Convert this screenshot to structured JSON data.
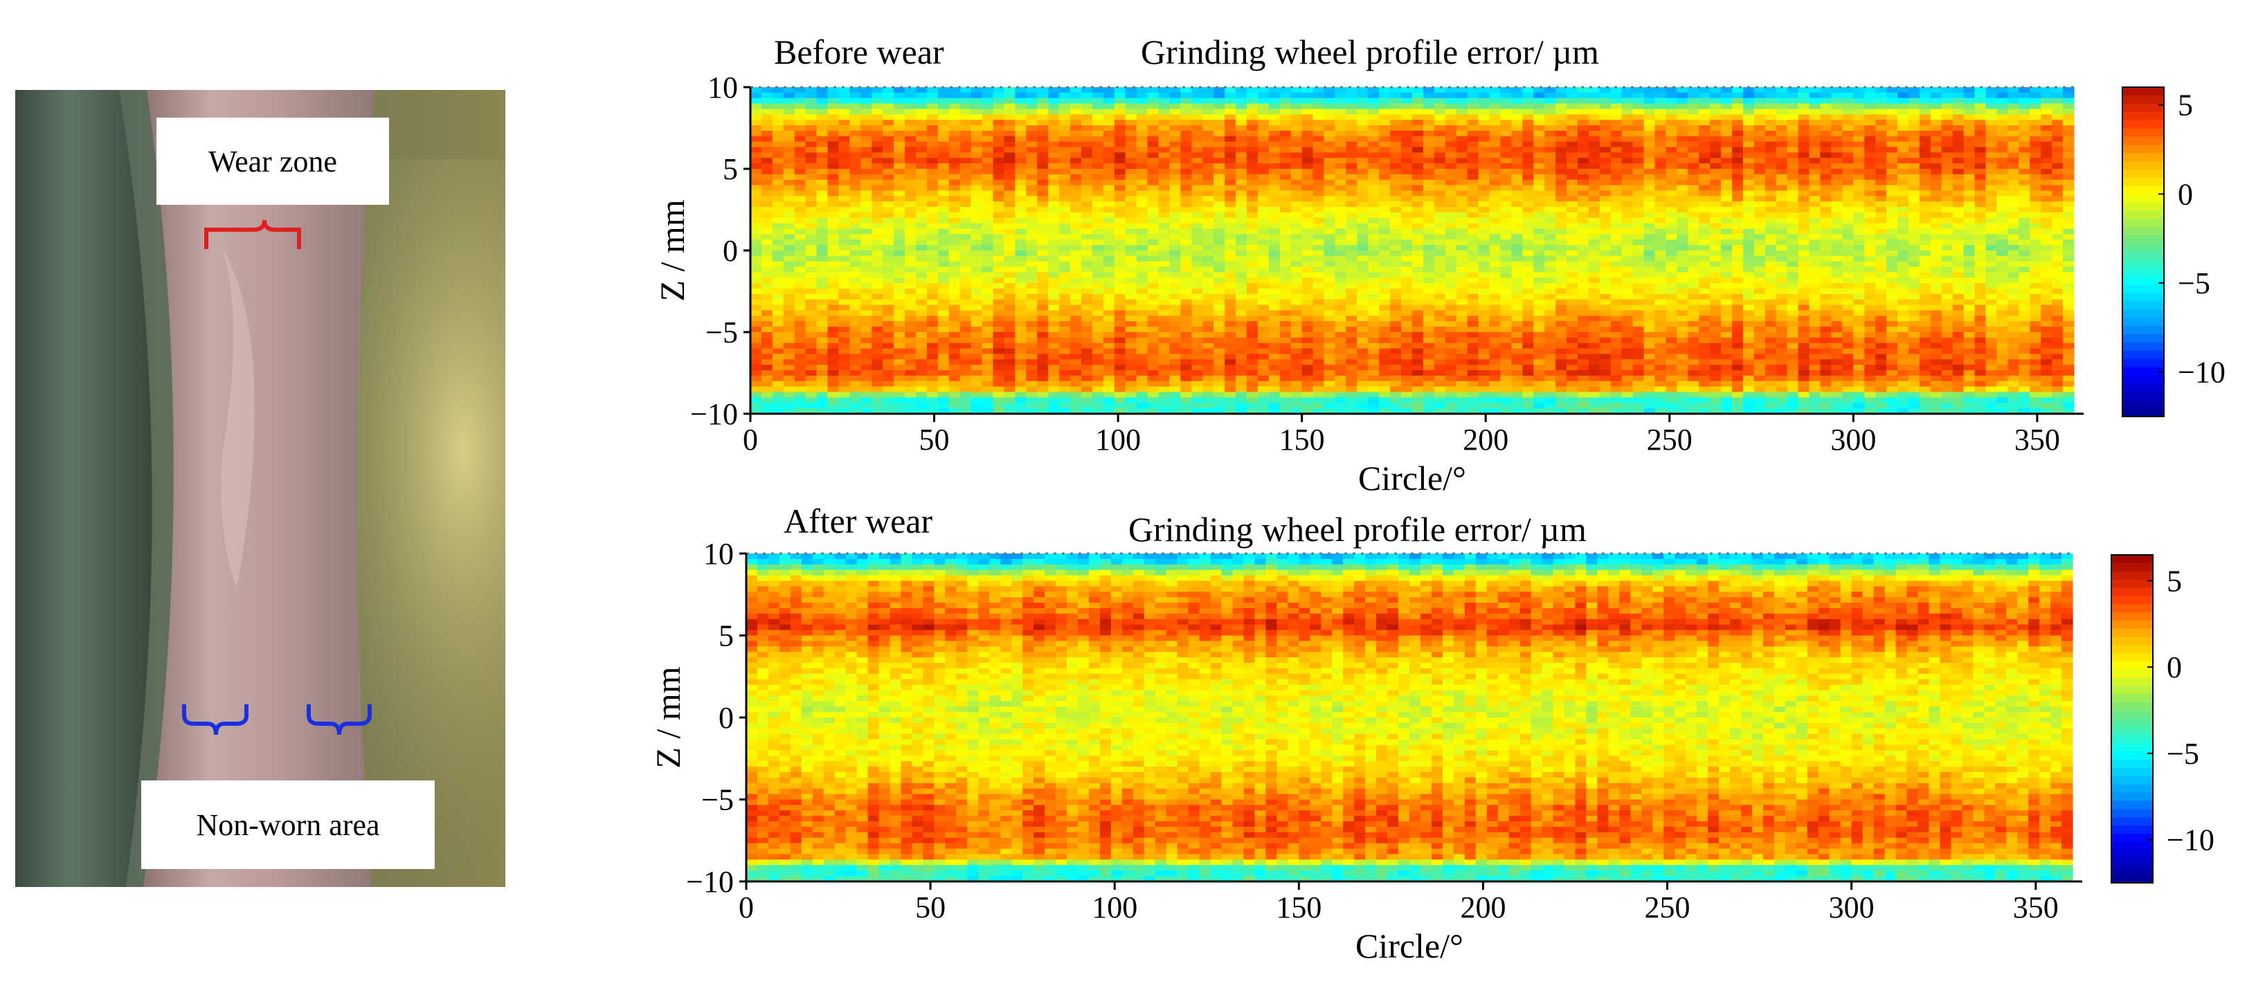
{
  "photo": {
    "wear_zone_label": "Wear zone",
    "non_worn_label": "Non-worn area"
  },
  "chart_data": [
    {
      "type": "heatmap",
      "panel_label": "Before wear",
      "title": "Grinding wheel profile error/ µm",
      "xlabel": "Circle/°",
      "ylabel": "Z / mm",
      "xlim": [
        0,
        360
      ],
      "ylim": [
        -10,
        10
      ],
      "xticks": [
        0,
        50,
        100,
        150,
        200,
        250,
        300,
        350
      ],
      "yticks": [
        10,
        5,
        0,
        -5,
        -10
      ],
      "colorbar": {
        "ticks": [
          5,
          0,
          -5,
          -10
        ],
        "range": [
          -12.5,
          6
        ]
      },
      "band_profile": [
        {
          "z": 9.5,
          "value": -6
        },
        {
          "z": 8.8,
          "value": -2
        },
        {
          "z": 8.0,
          "value": 1.5
        },
        {
          "z": 7.0,
          "value": 3.2
        },
        {
          "z": 5.5,
          "value": 3.8
        },
        {
          "z": 4.0,
          "value": 2.2
        },
        {
          "z": 2.5,
          "value": 0.6
        },
        {
          "z": 1.0,
          "value": -0.8
        },
        {
          "z": 0.0,
          "value": -1.2
        },
        {
          "z": -1.5,
          "value": -0.4
        },
        {
          "z": -3.0,
          "value": 0.8
        },
        {
          "z": -4.5,
          "value": 2.4
        },
        {
          "z": -6.0,
          "value": 3.4
        },
        {
          "z": -7.5,
          "value": 3.6
        },
        {
          "z": -8.5,
          "value": 1.5
        },
        {
          "z": -9.0,
          "value": -4
        }
      ]
    },
    {
      "type": "heatmap",
      "panel_label": "After wear",
      "title": "Grinding wheel profile error/ µm",
      "xlabel": "Circle/°",
      "ylabel": "Z / mm",
      "xlim": [
        0,
        360
      ],
      "ylim": [
        -10,
        10
      ],
      "xticks": [
        0,
        50,
        100,
        150,
        200,
        250,
        300,
        350
      ],
      "yticks": [
        10,
        5,
        0,
        -5,
        -10
      ],
      "colorbar": {
        "ticks": [
          5,
          0,
          -5,
          -10
        ],
        "range": [
          -12.5,
          6.5
        ]
      },
      "band_profile": [
        {
          "z": 9.6,
          "value": -6
        },
        {
          "z": 9.0,
          "value": -2
        },
        {
          "z": 8.3,
          "value": 1.2
        },
        {
          "z": 7.5,
          "value": 2.4
        },
        {
          "z": 6.5,
          "value": 3.0
        },
        {
          "z": 5.6,
          "value": 4.4
        },
        {
          "z": 4.8,
          "value": 2.6
        },
        {
          "z": 3.5,
          "value": 1.0
        },
        {
          "z": 2.0,
          "value": 0.2
        },
        {
          "z": 0.5,
          "value": -0.5
        },
        {
          "z": -1.0,
          "value": -0.1
        },
        {
          "z": -2.5,
          "value": 0.4
        },
        {
          "z": -4.0,
          "value": 1.6
        },
        {
          "z": -5.5,
          "value": 3.0
        },
        {
          "z": -7.0,
          "value": 3.4
        },
        {
          "z": -8.5,
          "value": 2.0
        },
        {
          "z": -9.2,
          "value": -4
        }
      ]
    }
  ]
}
